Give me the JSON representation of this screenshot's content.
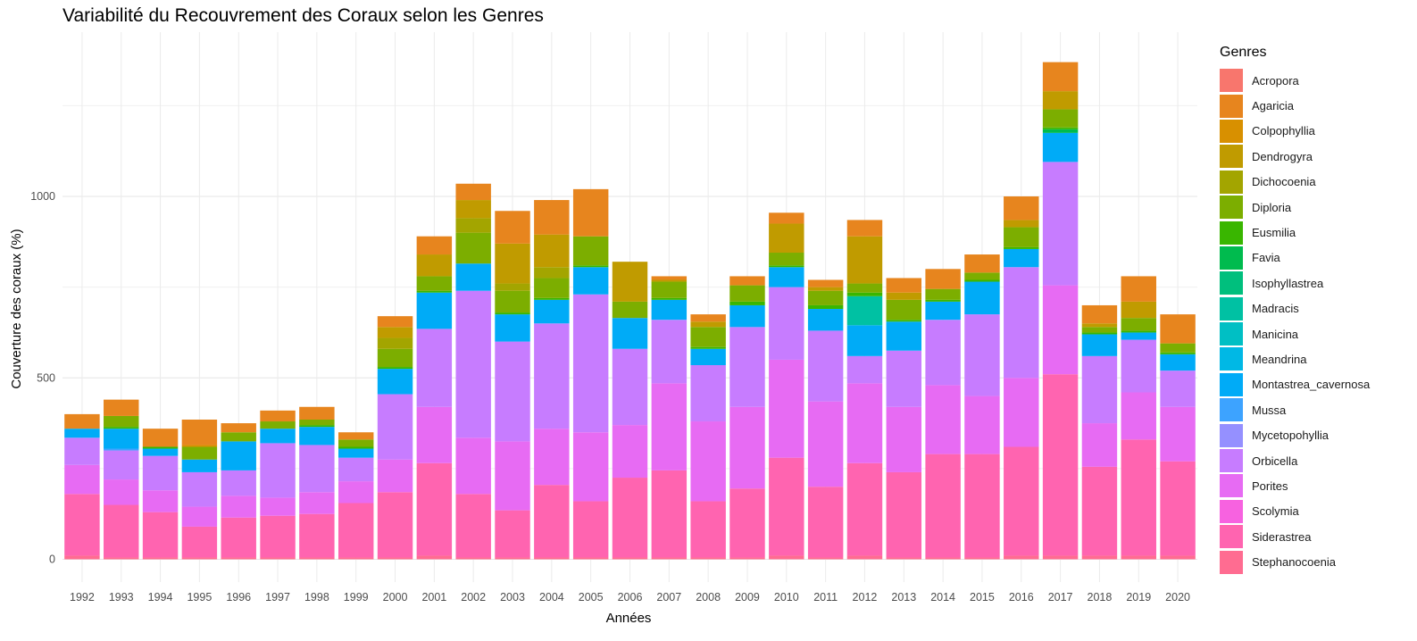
{
  "chart_data": {
    "type": "bar",
    "stacked": true,
    "title": "Variabilité du Recouvrement des Coraux selon les Genres",
    "xlabel": "Années",
    "ylabel": "Couverture des coraux (%)",
    "ylim": [
      0,
      1400
    ],
    "yticks": [
      0,
      500,
      1000
    ],
    "grid": true,
    "legend_title": "Genres",
    "legend_position": "right",
    "categories": [
      "1992",
      "1993",
      "1994",
      "1995",
      "1996",
      "1997",
      "1998",
      "1999",
      "2000",
      "2001",
      "2002",
      "2003",
      "2004",
      "2005",
      "2006",
      "2007",
      "2008",
      "2009",
      "2010",
      "2011",
      "2012",
      "2013",
      "2014",
      "2015",
      "2016",
      "2017",
      "2018",
      "2019",
      "2020"
    ],
    "series": [
      {
        "name": "Acropora",
        "color": "#F8766D",
        "values": [
          0,
          0,
          0,
          0,
          0,
          0,
          0,
          0,
          0,
          0,
          0,
          0,
          0,
          0,
          0,
          0,
          0,
          0,
          0,
          0,
          0,
          0,
          0,
          0,
          0,
          0,
          0,
          0,
          0
        ]
      },
      {
        "name": "Agaricia",
        "color": "#E7851E",
        "values": [
          40,
          45,
          50,
          70,
          25,
          30,
          35,
          20,
          30,
          50,
          45,
          90,
          95,
          130,
          0,
          10,
          20,
          25,
          30,
          20,
          45,
          40,
          55,
          50,
          65,
          80,
          50,
          70,
          80
        ]
      },
      {
        "name": "Colpophyllia",
        "color": "#D89000",
        "values": [
          0,
          0,
          0,
          5,
          0,
          0,
          0,
          0,
          0,
          0,
          0,
          0,
          0,
          0,
          0,
          0,
          0,
          0,
          0,
          0,
          0,
          0,
          0,
          0,
          0,
          0,
          0,
          0,
          0
        ]
      },
      {
        "name": "Dendrogyra",
        "color": "#C09B00",
        "values": [
          0,
          0,
          0,
          0,
          0,
          0,
          0,
          0,
          30,
          60,
          50,
          110,
          90,
          0,
          110,
          5,
          15,
          0,
          80,
          10,
          130,
          20,
          0,
          0,
          20,
          50,
          10,
          45,
          0
        ]
      },
      {
        "name": "Dichocoenia",
        "color": "#A3A500",
        "values": [
          0,
          0,
          0,
          0,
          0,
          0,
          0,
          0,
          30,
          0,
          40,
          20,
          30,
          0,
          0,
          0,
          0,
          0,
          0,
          0,
          0,
          0,
          0,
          0,
          0,
          0,
          0,
          0,
          0
        ]
      },
      {
        "name": "Diploria",
        "color": "#7CAE00",
        "values": [
          0,
          30,
          0,
          35,
          25,
          20,
          15,
          20,
          50,
          40,
          85,
          60,
          55,
          80,
          45,
          45,
          55,
          45,
          35,
          40,
          25,
          55,
          30,
          20,
          55,
          50,
          15,
          35,
          25
        ]
      },
      {
        "name": "Eusmilia",
        "color": "#39B600",
        "values": [
          0,
          5,
          5,
          0,
          0,
          0,
          5,
          5,
          5,
          5,
          0,
          5,
          5,
          5,
          0,
          5,
          5,
          10,
          5,
          10,
          10,
          5,
          5,
          5,
          5,
          5,
          5,
          5,
          5
        ]
      },
      {
        "name": "Favia",
        "color": "#00BB4E",
        "values": [
          0,
          0,
          0,
          0,
          0,
          0,
          0,
          0,
          0,
          0,
          0,
          0,
          0,
          0,
          0,
          0,
          0,
          0,
          0,
          0,
          0,
          0,
          0,
          0,
          0,
          10,
          0,
          0,
          0
        ]
      },
      {
        "name": "Isophyllastrea",
        "color": "#00BF7D",
        "values": [
          0,
          0,
          0,
          0,
          0,
          0,
          0,
          0,
          0,
          0,
          0,
          0,
          0,
          0,
          0,
          0,
          0,
          0,
          0,
          0,
          0,
          0,
          0,
          0,
          0,
          0,
          0,
          0,
          0
        ]
      },
      {
        "name": "Madracis",
        "color": "#00C1A3",
        "values": [
          0,
          0,
          0,
          0,
          0,
          0,
          0,
          0,
          0,
          0,
          0,
          0,
          0,
          0,
          0,
          0,
          0,
          0,
          0,
          0,
          80,
          0,
          0,
          0,
          0,
          0,
          0,
          0,
          0
        ]
      },
      {
        "name": "Manicina",
        "color": "#00BFC4",
        "values": [
          0,
          0,
          0,
          0,
          0,
          0,
          0,
          0,
          0,
          0,
          0,
          0,
          0,
          0,
          0,
          0,
          0,
          0,
          0,
          0,
          0,
          0,
          0,
          0,
          0,
          0,
          0,
          0,
          0
        ]
      },
      {
        "name": "Meandrina",
        "color": "#00B8E5",
        "values": [
          0,
          0,
          0,
          0,
          0,
          0,
          0,
          0,
          0,
          0,
          0,
          0,
          0,
          0,
          0,
          0,
          0,
          0,
          0,
          0,
          0,
          0,
          0,
          0,
          0,
          0,
          0,
          0,
          0
        ]
      },
      {
        "name": "Montastrea_cavernosa",
        "color": "#00ABF7",
        "values": [
          25,
          55,
          20,
          35,
          80,
          40,
          50,
          25,
          70,
          100,
          75,
          75,
          65,
          75,
          85,
          55,
          45,
          60,
          55,
          60,
          85,
          80,
          50,
          90,
          50,
          80,
          60,
          20,
          45
        ]
      },
      {
        "name": "Mussa",
        "color": "#3DA3FF",
        "values": [
          0,
          5,
          0,
          0,
          0,
          0,
          0,
          0,
          0,
          0,
          0,
          0,
          0,
          0,
          0,
          0,
          0,
          0,
          0,
          0,
          0,
          0,
          0,
          0,
          0,
          0,
          0,
          0,
          0
        ]
      },
      {
        "name": "Mycetopohyllia",
        "color": "#9590FF",
        "values": [
          0,
          0,
          0,
          0,
          0,
          0,
          0,
          0,
          0,
          0,
          0,
          0,
          0,
          0,
          0,
          0,
          0,
          0,
          0,
          0,
          0,
          0,
          0,
          0,
          0,
          0,
          0,
          0,
          0
        ]
      },
      {
        "name": "Orbicella",
        "color": "#C77CFF",
        "values": [
          75,
          80,
          95,
          95,
          70,
          150,
          130,
          65,
          180,
          215,
          405,
          275,
          290,
          380,
          210,
          175,
          155,
          220,
          200,
          195,
          75,
          155,
          180,
          225,
          305,
          340,
          185,
          145,
          100
        ]
      },
      {
        "name": "Porites",
        "color": "#E76BF3",
        "values": [
          80,
          70,
          60,
          55,
          60,
          50,
          60,
          60,
          90,
          155,
          155,
          190,
          155,
          190,
          145,
          240,
          220,
          225,
          270,
          235,
          220,
          180,
          190,
          160,
          190,
          245,
          120,
          130,
          150
        ]
      },
      {
        "name": "Scolymia",
        "color": "#F762E0",
        "values": [
          0,
          0,
          0,
          0,
          0,
          0,
          0,
          0,
          0,
          0,
          0,
          0,
          0,
          0,
          0,
          0,
          0,
          0,
          0,
          0,
          0,
          0,
          0,
          0,
          0,
          0,
          0,
          0,
          0
        ]
      },
      {
        "name": "Siderastrea",
        "color": "#FF64B0",
        "values": [
          170,
          145,
          125,
          85,
          110,
          115,
          120,
          150,
          180,
          255,
          175,
          130,
          200,
          155,
          220,
          240,
          155,
          190,
          270,
          195,
          255,
          235,
          285,
          285,
          300,
          500,
          245,
          320,
          260
        ]
      },
      {
        "name": "Stephanocoenia",
        "color": "#FF6C91",
        "values": [
          10,
          5,
          5,
          5,
          5,
          5,
          5,
          5,
          5,
          10,
          5,
          5,
          5,
          5,
          5,
          5,
          5,
          5,
          10,
          5,
          10,
          5,
          5,
          5,
          10,
          10,
          10,
          10,
          10
        ]
      }
    ]
  }
}
